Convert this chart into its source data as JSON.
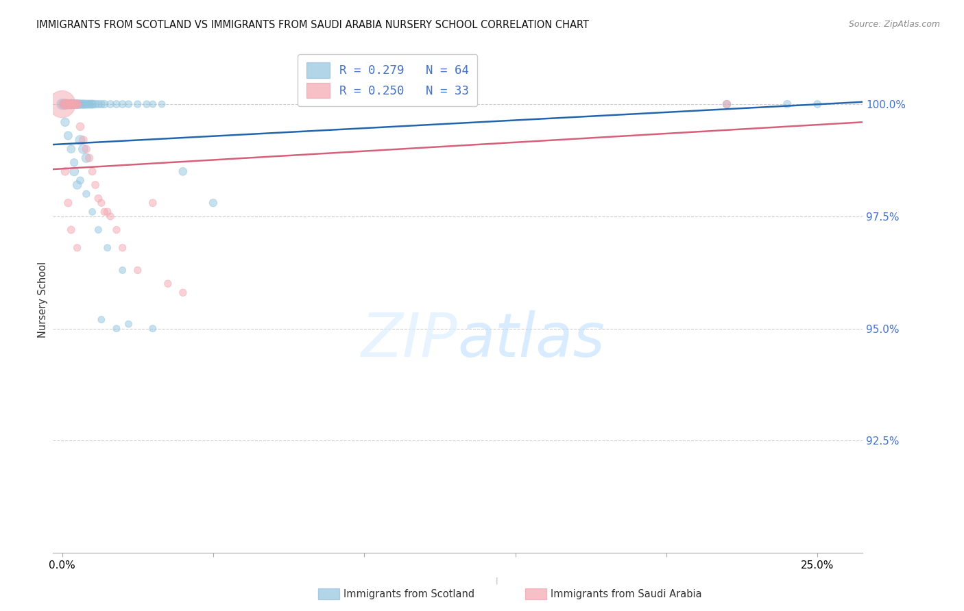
{
  "title": "IMMIGRANTS FROM SCOTLAND VS IMMIGRANTS FROM SAUDI ARABIA NURSERY SCHOOL CORRELATION CHART",
  "source": "Source: ZipAtlas.com",
  "ylabel": "Nursery School",
  "ytick_values": [
    100.0,
    97.5,
    95.0,
    92.5
  ],
  "ylim": [
    90.0,
    101.3
  ],
  "xlim": [
    -0.003,
    0.265
  ],
  "scotland_color": "#92c5de",
  "saudi_color": "#f4a6b0",
  "scotland_line_color": "#2166ac",
  "saudi_line_color": "#d6607a",
  "scotland_R": "0.279",
  "scotland_N": "64",
  "saudi_R": "0.250",
  "saudi_N": "33",
  "legend_label_scotland": "Immigrants from Scotland",
  "legend_label_saudi": "Immigrants from Saudi Arabia",
  "sc_x": [
    0.0,
    0.0005,
    0.001,
    0.001,
    0.0015,
    0.002,
    0.002,
    0.0025,
    0.003,
    0.003,
    0.003,
    0.003,
    0.004,
    0.004,
    0.0045,
    0.005,
    0.005,
    0.005,
    0.006,
    0.006,
    0.007,
    0.007,
    0.008,
    0.008,
    0.009,
    0.009,
    0.01,
    0.01,
    0.011,
    0.012,
    0.013,
    0.014,
    0.016,
    0.018,
    0.02,
    0.022,
    0.025,
    0.028,
    0.03,
    0.033,
    0.006,
    0.007,
    0.008,
    0.004,
    0.005,
    0.04,
    0.05,
    0.22,
    0.24,
    0.25,
    0.001,
    0.002,
    0.003,
    0.004,
    0.006,
    0.008,
    0.01,
    0.012,
    0.015,
    0.02,
    0.013,
    0.018,
    0.022,
    0.03
  ],
  "sc_y": [
    100.0,
    100.0,
    100.0,
    100.0,
    100.0,
    100.0,
    100.0,
    100.0,
    100.0,
    100.0,
    100.0,
    100.0,
    100.0,
    100.0,
    100.0,
    100.0,
    100.0,
    100.0,
    100.0,
    100.0,
    100.0,
    100.0,
    100.0,
    100.0,
    100.0,
    100.0,
    100.0,
    100.0,
    100.0,
    100.0,
    100.0,
    100.0,
    100.0,
    100.0,
    100.0,
    100.0,
    100.0,
    100.0,
    100.0,
    100.0,
    99.2,
    99.0,
    98.8,
    98.5,
    98.2,
    98.5,
    97.8,
    100.0,
    100.0,
    100.0,
    99.6,
    99.3,
    99.0,
    98.7,
    98.3,
    98.0,
    97.6,
    97.2,
    96.8,
    96.3,
    95.2,
    95.0,
    95.1,
    95.0
  ],
  "sc_sizes": [
    120,
    90,
    100,
    110,
    95,
    85,
    95,
    90,
    80,
    85,
    90,
    95,
    80,
    85,
    80,
    75,
    80,
    85,
    75,
    80,
    75,
    80,
    70,
    75,
    70,
    75,
    70,
    75,
    70,
    65,
    65,
    65,
    60,
    60,
    60,
    55,
    55,
    55,
    50,
    50,
    100,
    95,
    90,
    85,
    80,
    70,
    65,
    70,
    65,
    60,
    80,
    75,
    70,
    65,
    60,
    55,
    50,
    50,
    50,
    50,
    50,
    50,
    50,
    50
  ],
  "sa_x": [
    0.0,
    0.001,
    0.001,
    0.002,
    0.002,
    0.003,
    0.003,
    0.004,
    0.004,
    0.005,
    0.005,
    0.006,
    0.007,
    0.008,
    0.009,
    0.01,
    0.011,
    0.013,
    0.016,
    0.018,
    0.02,
    0.025,
    0.03,
    0.015,
    0.012,
    0.014,
    0.035,
    0.04,
    0.22,
    0.001,
    0.002,
    0.003,
    0.005
  ],
  "sa_y": [
    100.0,
    100.0,
    100.0,
    100.0,
    100.0,
    100.0,
    100.0,
    100.0,
    100.0,
    100.0,
    100.0,
    99.5,
    99.2,
    99.0,
    98.8,
    98.5,
    98.2,
    97.8,
    97.5,
    97.2,
    96.8,
    96.3,
    97.8,
    97.6,
    97.9,
    97.6,
    96.0,
    95.8,
    100.0,
    98.5,
    97.8,
    97.2,
    96.8
  ],
  "sa_sizes": [
    800,
    100,
    95,
    90,
    90,
    85,
    85,
    80,
    80,
    75,
    75,
    70,
    70,
    65,
    65,
    60,
    60,
    55,
    55,
    55,
    55,
    55,
    60,
    60,
    60,
    55,
    55,
    55,
    65,
    70,
    65,
    60,
    55
  ]
}
